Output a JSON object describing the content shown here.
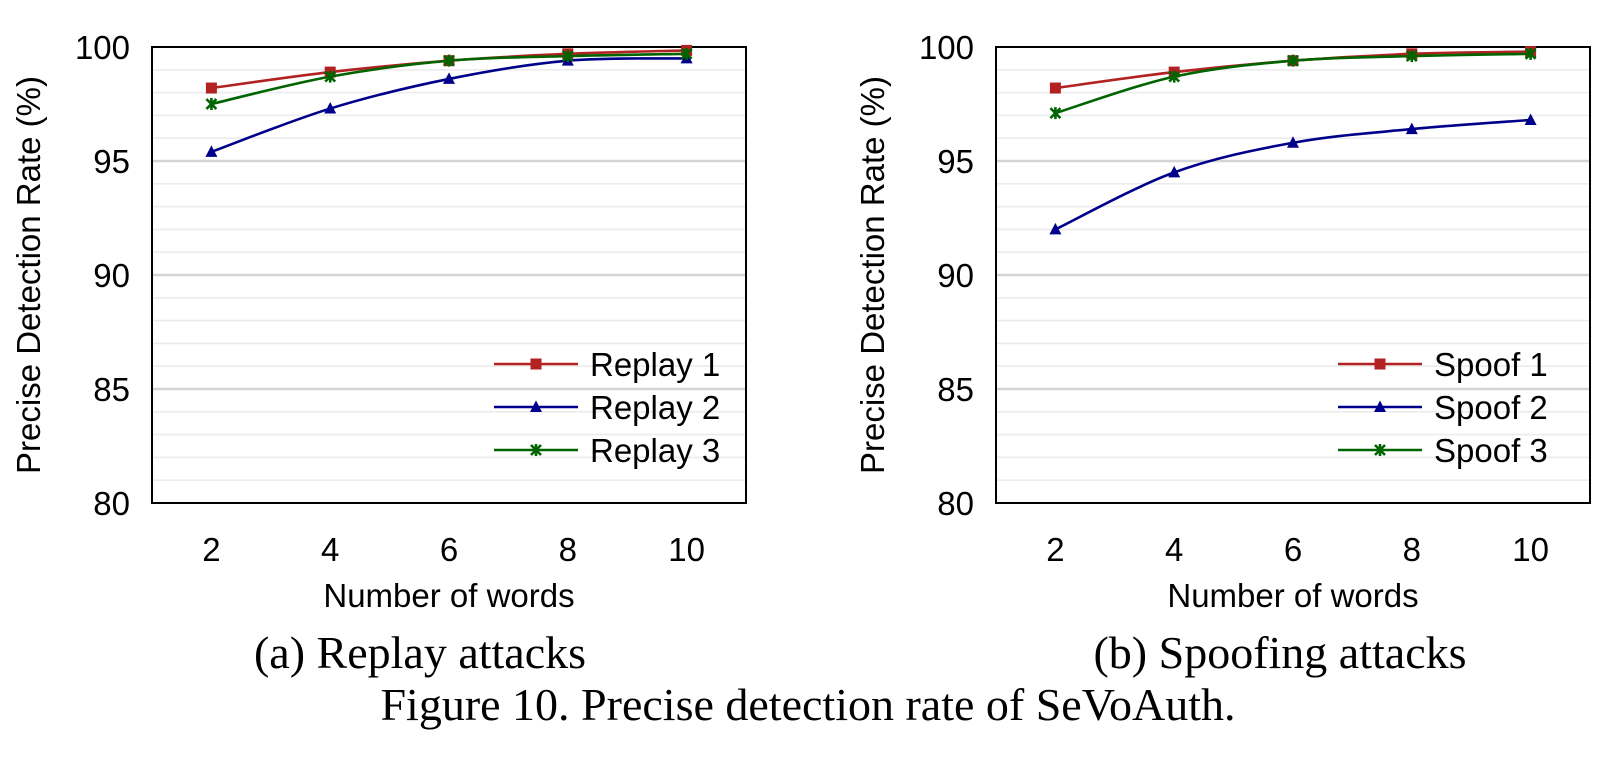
{
  "figure_caption": "Figure 10. Precise detection rate of SeVoAuth.",
  "chart_data": [
    {
      "type": "line",
      "subcaption": "(a) Replay attacks",
      "xlabel": "Number of words",
      "ylabel": "Precise Detection Rate (%)",
      "x": [
        2,
        4,
        6,
        8,
        10
      ],
      "ylim": [
        80,
        100
      ],
      "yticks": [
        80,
        85,
        90,
        95,
        100
      ],
      "grid": true,
      "legend_position": "bottom-right",
      "series": [
        {
          "name": "Replay 1",
          "color": "#b22222",
          "marker": "square",
          "values": [
            98.2,
            98.9,
            99.4,
            99.7,
            99.85
          ]
        },
        {
          "name": "Replay 2",
          "color": "#00008b",
          "marker": "triangle",
          "values": [
            95.4,
            97.3,
            98.6,
            99.4,
            99.5
          ]
        },
        {
          "name": "Replay 3",
          "color": "#006400",
          "marker": "x",
          "values": [
            97.5,
            98.7,
            99.4,
            99.6,
            99.7
          ]
        }
      ]
    },
    {
      "type": "line",
      "subcaption": "(b) Spoofing attacks",
      "xlabel": "Number of words",
      "ylabel": "Precise Detection Rate (%)",
      "x": [
        2,
        4,
        6,
        8,
        10
      ],
      "ylim": [
        80,
        100
      ],
      "yticks": [
        80,
        85,
        90,
        95,
        100
      ],
      "grid": true,
      "legend_position": "bottom-right",
      "series": [
        {
          "name": "Spoof 1",
          "color": "#b22222",
          "marker": "square",
          "values": [
            98.2,
            98.9,
            99.4,
            99.7,
            99.8
          ]
        },
        {
          "name": "Spoof 2",
          "color": "#00008b",
          "marker": "triangle",
          "values": [
            92.0,
            94.5,
            95.8,
            96.4,
            96.8
          ]
        },
        {
          "name": "Spoof 3",
          "color": "#006400",
          "marker": "x",
          "values": [
            97.1,
            98.7,
            99.4,
            99.6,
            99.7
          ]
        }
      ]
    }
  ]
}
